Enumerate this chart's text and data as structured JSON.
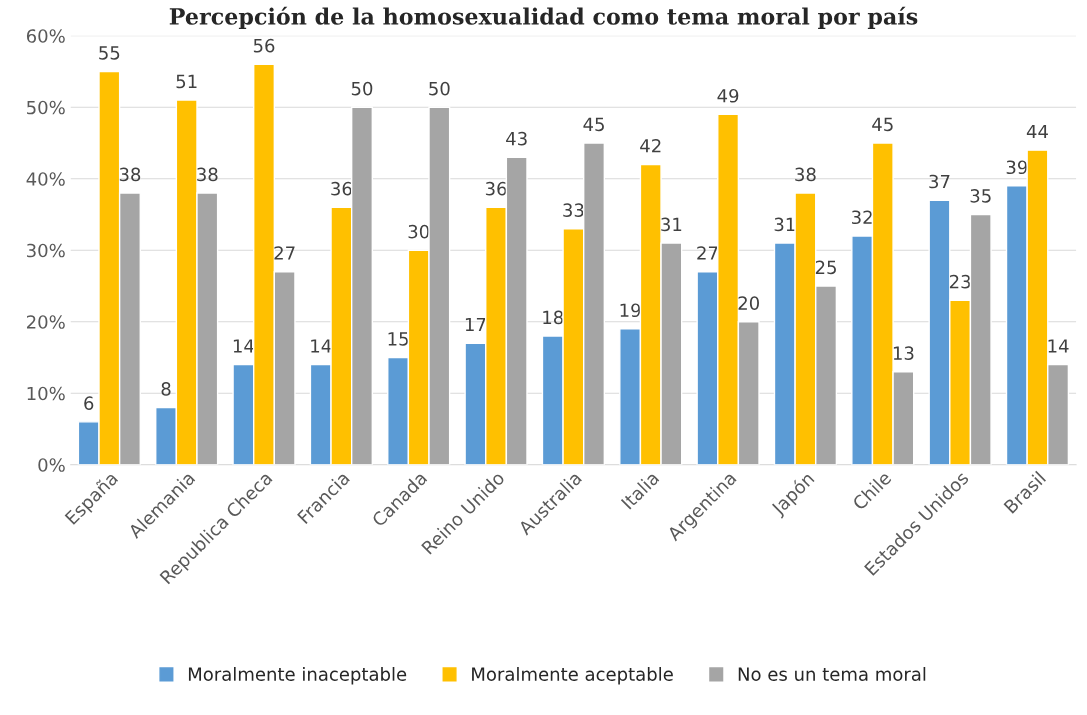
{
  "chart_data": {
    "type": "bar",
    "title": "Percepción de la homosexualidad como tema moral por país",
    "categories": [
      "España",
      "Alemania",
      "Republica Checa",
      "Francia",
      "Canada",
      "Reino Unido",
      "Australia",
      "Italia",
      "Argentina",
      "Japón",
      "Chile",
      "Estados Unidos",
      "Brasil"
    ],
    "series": [
      {
        "name": "Moralmente inaceptable",
        "color": "#5b9bd5",
        "values": [
          6,
          8,
          14,
          14,
          15,
          17,
          18,
          19,
          27,
          31,
          32,
          37,
          39
        ]
      },
      {
        "name": "Moralmente aceptable",
        "color": "#ffc000",
        "values": [
          55,
          51,
          56,
          36,
          30,
          36,
          33,
          42,
          49,
          38,
          45,
          23,
          44
        ]
      },
      {
        "name": "No es un tema moral",
        "color": "#a5a5a5",
        "values": [
          38,
          38,
          27,
          50,
          50,
          43,
          45,
          31,
          20,
          25,
          13,
          35,
          14
        ]
      }
    ],
    "ylim": [
      0,
      60
    ],
    "yticks": [
      {
        "value": 0,
        "label": "0%"
      },
      {
        "value": 10,
        "label": "10%"
      },
      {
        "value": 20,
        "label": "20%"
      },
      {
        "value": 30,
        "label": "30%"
      },
      {
        "value": 40,
        "label": "40%"
      },
      {
        "value": 50,
        "label": "50%"
      },
      {
        "value": 60,
        "label": "60%"
      }
    ],
    "grid": "y",
    "legend": "bottom",
    "data_labels": true
  }
}
